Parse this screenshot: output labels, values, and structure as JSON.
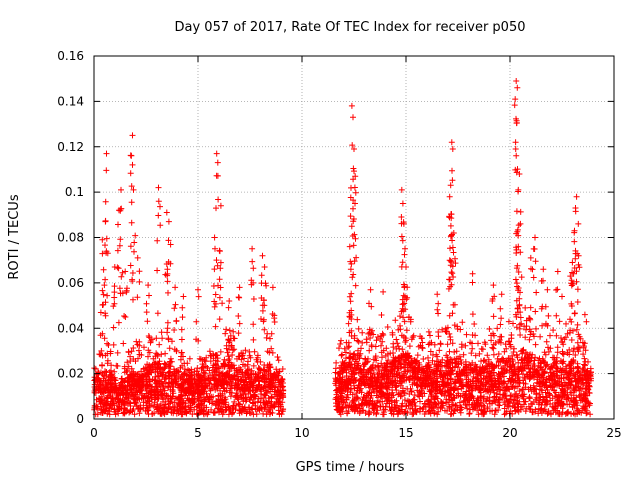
{
  "chart_data": {
    "type": "scatter",
    "title": "Day 057 of 2017, Rate Of TEC Index for receiver p050",
    "xlabel": "GPS time / hours",
    "ylabel": "ROTI / TECUs",
    "xlim": [
      0,
      25
    ],
    "ylim": [
      0,
      0.16
    ],
    "xticks": [
      0,
      5,
      10,
      15,
      20,
      25
    ],
    "xtick_labels": [
      "0",
      "5",
      "10",
      "15",
      "20",
      "25"
    ],
    "yticks": [
      0,
      0.02,
      0.04,
      0.06,
      0.08,
      0.1,
      0.12,
      0.14,
      0.16
    ],
    "ytick_labels": [
      "0",
      "0.02",
      "0.04",
      "0.06",
      "0.08",
      "0.1",
      "0.12",
      "0.14",
      "0.16"
    ],
    "grid": true,
    "marker": "+",
    "series_color": "#ff0000",
    "gap_hours": [
      9.1,
      11.6
    ],
    "notable_points": [
      {
        "x": 0.6,
        "y": 0.117
      },
      {
        "x": 0.55,
        "y": 0.087
      },
      {
        "x": 1.2,
        "y": 0.092
      },
      {
        "x": 1.3,
        "y": 0.101
      },
      {
        "x": 1.8,
        "y": 0.116
      },
      {
        "x": 1.85,
        "y": 0.125
      },
      {
        "x": 1.9,
        "y": 0.101
      },
      {
        "x": 3.1,
        "y": 0.102
      },
      {
        "x": 3.5,
        "y": 0.091
      },
      {
        "x": 3.6,
        "y": 0.087
      },
      {
        "x": 5.0,
        "y": 0.057
      },
      {
        "x": 5.9,
        "y": 0.117
      },
      {
        "x": 5.95,
        "y": 0.113
      },
      {
        "x": 5.8,
        "y": 0.08
      },
      {
        "x": 6.1,
        "y": 0.094
      },
      {
        "x": 7.6,
        "y": 0.075
      },
      {
        "x": 8.1,
        "y": 0.072
      },
      {
        "x": 8.2,
        "y": 0.067
      },
      {
        "x": 12.4,
        "y": 0.138
      },
      {
        "x": 12.45,
        "y": 0.133
      },
      {
        "x": 12.5,
        "y": 0.119
      },
      {
        "x": 12.55,
        "y": 0.095
      },
      {
        "x": 12.3,
        "y": 0.076
      },
      {
        "x": 12.35,
        "y": 0.066
      },
      {
        "x": 14.8,
        "y": 0.101
      },
      {
        "x": 14.85,
        "y": 0.095
      },
      {
        "x": 14.9,
        "y": 0.086
      },
      {
        "x": 14.95,
        "y": 0.075
      },
      {
        "x": 15.0,
        "y": 0.067
      },
      {
        "x": 17.2,
        "y": 0.122
      },
      {
        "x": 17.25,
        "y": 0.119
      },
      {
        "x": 17.15,
        "y": 0.103
      },
      {
        "x": 17.1,
        "y": 0.098
      },
      {
        "x": 17.3,
        "y": 0.082
      },
      {
        "x": 18.2,
        "y": 0.064
      },
      {
        "x": 20.3,
        "y": 0.149
      },
      {
        "x": 20.35,
        "y": 0.146
      },
      {
        "x": 20.25,
        "y": 0.141
      },
      {
        "x": 20.3,
        "y": 0.116
      },
      {
        "x": 20.45,
        "y": 0.108
      },
      {
        "x": 20.4,
        "y": 0.101
      },
      {
        "x": 20.5,
        "y": 0.086
      },
      {
        "x": 20.4,
        "y": 0.076
      },
      {
        "x": 21.2,
        "y": 0.08
      },
      {
        "x": 21.0,
        "y": 0.071
      },
      {
        "x": 21.6,
        "y": 0.066
      },
      {
        "x": 22.3,
        "y": 0.065
      },
      {
        "x": 23.2,
        "y": 0.098
      },
      {
        "x": 23.15,
        "y": 0.093
      },
      {
        "x": 23.1,
        "y": 0.083
      },
      {
        "x": 23.3,
        "y": 0.072
      },
      {
        "x": 23.0,
        "y": 0.069
      },
      {
        "x": 22.9,
        "y": 0.063
      },
      {
        "x": 0.4,
        "y": 0.079
      },
      {
        "x": 0.5,
        "y": 0.059
      },
      {
        "x": 1.0,
        "y": 0.067
      },
      {
        "x": 1.5,
        "y": 0.065
      },
      {
        "x": 2.1,
        "y": 0.071
      },
      {
        "x": 2.6,
        "y": 0.059
      },
      {
        "x": 3.9,
        "y": 0.058
      },
      {
        "x": 4.3,
        "y": 0.054
      },
      {
        "x": 6.5,
        "y": 0.052
      },
      {
        "x": 7.0,
        "y": 0.058
      },
      {
        "x": 8.6,
        "y": 0.058
      },
      {
        "x": 13.3,
        "y": 0.057
      },
      {
        "x": 13.9,
        "y": 0.056
      },
      {
        "x": 16.5,
        "y": 0.055
      },
      {
        "x": 19.2,
        "y": 0.059
      },
      {
        "x": 19.6,
        "y": 0.055
      },
      {
        "x": 21.8,
        "y": 0.057
      },
      {
        "x": 22.5,
        "y": 0.054
      },
      {
        "x": 23.6,
        "y": 0.046
      }
    ],
    "density_profile": [
      {
        "x": 0.0,
        "base": 0.011,
        "upper": 0.026
      },
      {
        "x": 0.5,
        "base": 0.012,
        "upper": 0.035
      },
      {
        "x": 1.0,
        "base": 0.011,
        "upper": 0.03
      },
      {
        "x": 1.5,
        "base": 0.01,
        "upper": 0.028
      },
      {
        "x": 2.0,
        "base": 0.012,
        "upper": 0.034
      },
      {
        "x": 2.5,
        "base": 0.013,
        "upper": 0.036
      },
      {
        "x": 3.0,
        "base": 0.015,
        "upper": 0.04
      },
      {
        "x": 3.5,
        "base": 0.014,
        "upper": 0.045
      },
      {
        "x": 4.0,
        "base": 0.012,
        "upper": 0.035
      },
      {
        "x": 4.5,
        "base": 0.011,
        "upper": 0.03
      },
      {
        "x": 5.0,
        "base": 0.011,
        "upper": 0.028
      },
      {
        "x": 5.5,
        "base": 0.013,
        "upper": 0.03
      },
      {
        "x": 6.0,
        "base": 0.015,
        "upper": 0.038
      },
      {
        "x": 6.5,
        "base": 0.015,
        "upper": 0.042
      },
      {
        "x": 7.0,
        "base": 0.013,
        "upper": 0.035
      },
      {
        "x": 7.5,
        "base": 0.012,
        "upper": 0.03
      },
      {
        "x": 8.0,
        "base": 0.013,
        "upper": 0.033
      },
      {
        "x": 8.5,
        "base": 0.014,
        "upper": 0.04
      },
      {
        "x": 9.0,
        "base": 0.01,
        "upper": 0.022
      },
      {
        "x": 11.7,
        "base": 0.012,
        "upper": 0.03
      },
      {
        "x": 12.0,
        "base": 0.014,
        "upper": 0.04
      },
      {
        "x": 12.5,
        "base": 0.017,
        "upper": 0.048
      },
      {
        "x": 13.0,
        "base": 0.015,
        "upper": 0.042
      },
      {
        "x": 13.5,
        "base": 0.013,
        "upper": 0.038
      },
      {
        "x": 14.0,
        "base": 0.014,
        "upper": 0.04
      },
      {
        "x": 14.5,
        "base": 0.016,
        "upper": 0.045
      },
      {
        "x": 15.0,
        "base": 0.017,
        "upper": 0.047
      },
      {
        "x": 15.5,
        "base": 0.015,
        "upper": 0.042
      },
      {
        "x": 16.0,
        "base": 0.014,
        "upper": 0.038
      },
      {
        "x": 16.5,
        "base": 0.014,
        "upper": 0.04
      },
      {
        "x": 17.0,
        "base": 0.015,
        "upper": 0.042
      },
      {
        "x": 17.5,
        "base": 0.016,
        "upper": 0.045
      },
      {
        "x": 18.0,
        "base": 0.014,
        "upper": 0.04
      },
      {
        "x": 18.5,
        "base": 0.013,
        "upper": 0.036
      },
      {
        "x": 19.0,
        "base": 0.014,
        "upper": 0.04
      },
      {
        "x": 19.5,
        "base": 0.015,
        "upper": 0.042
      },
      {
        "x": 20.0,
        "base": 0.016,
        "upper": 0.046
      },
      {
        "x": 20.5,
        "base": 0.018,
        "upper": 0.05
      },
      {
        "x": 21.0,
        "base": 0.017,
        "upper": 0.048
      },
      {
        "x": 21.5,
        "base": 0.015,
        "upper": 0.042
      },
      {
        "x": 22.0,
        "base": 0.014,
        "upper": 0.04
      },
      {
        "x": 22.5,
        "base": 0.014,
        "upper": 0.042
      },
      {
        "x": 23.0,
        "base": 0.015,
        "upper": 0.045
      },
      {
        "x": 23.5,
        "base": 0.013,
        "upper": 0.035
      },
      {
        "x": 23.9,
        "base": 0.011,
        "upper": 0.025
      }
    ]
  }
}
